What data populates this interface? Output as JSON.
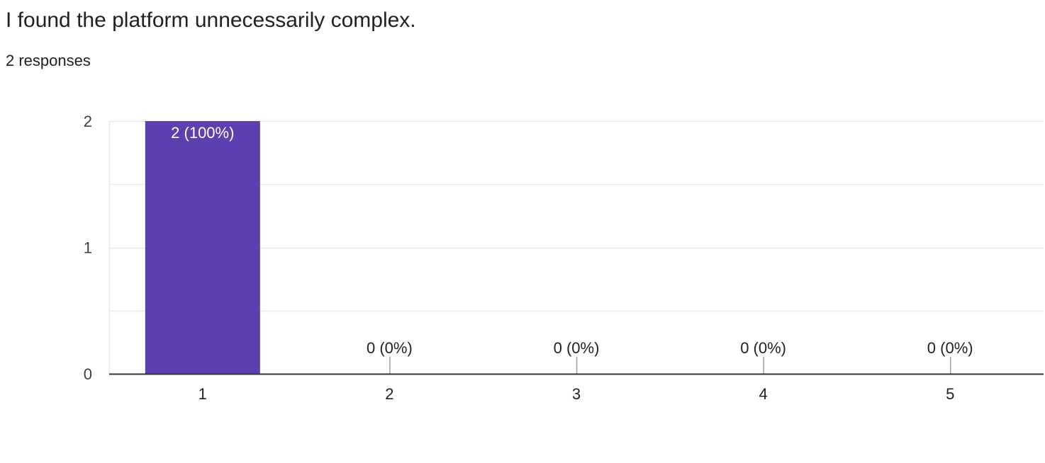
{
  "question": {
    "title": "I found the platform unnecessarily complex.",
    "response_count": "2 responses"
  },
  "colors": {
    "bar": "#5e3faf",
    "bar_label_inside": "#ffffff",
    "text": "#202124",
    "axis_text": "#3c4043",
    "gridline": "#ebebeb",
    "baseline": "#333333",
    "tick_mark": "#9e9e9e"
  },
  "chart_data": {
    "type": "bar",
    "title": "",
    "xlabel": "",
    "ylabel": "",
    "categories": [
      "1",
      "2",
      "3",
      "4",
      "5"
    ],
    "values": [
      2,
      0,
      0,
      0,
      0
    ],
    "data_labels": [
      "2 (100%)",
      "0 (0%)",
      "0 (0%)",
      "0 (0%)",
      "0 (0%)"
    ],
    "y_ticks": [
      0,
      1,
      2
    ],
    "ylim": [
      0,
      2
    ],
    "grid": true,
    "legend": "none"
  }
}
